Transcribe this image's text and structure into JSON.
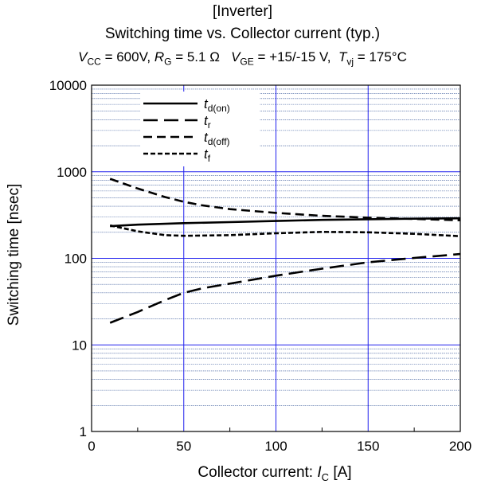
{
  "chart_data": {
    "type": "line",
    "title": "[Inverter]",
    "subtitle": "Switching time vs. Collector current  (typ.)",
    "conditions": {
      "vcc_sym": "V",
      "vcc_sub": "CC",
      "vcc_val": "= 600V,",
      "rg_sym": "R",
      "rg_sub": "G",
      "rg_val": "= 5.1 Ω",
      "vge_sym": "V",
      "vge_sub": "GE",
      "vge_val": "=  +15/-15 V,",
      "tvj_sym": "T",
      "tvj_sub": "vj",
      "tvj_val": "= 175°C"
    },
    "xlabel_text": "Collector current: ",
    "xlabel_sym": "I",
    "xlabel_sub": "C",
    "xlabel_unit": " [A]",
    "ylabel": "Switching time  [nsec]",
    "xlim": [
      0,
      200
    ],
    "ylim": [
      1,
      10000
    ],
    "yscale": "log",
    "x_ticks": [
      "0",
      "50",
      "100",
      "150",
      "200"
    ],
    "y_ticks": [
      "1",
      "10",
      "100",
      "1000",
      "10000"
    ],
    "grid": true,
    "legend_position": "top-left",
    "series": [
      {
        "name": "t",
        "name_sub": "d(on)",
        "style": "solid",
        "x": [
          10,
          25,
          50,
          75,
          100,
          125,
          150,
          175,
          200
        ],
        "y": [
          235,
          245,
          255,
          262,
          270,
          278,
          283,
          287,
          290
        ]
      },
      {
        "name": "t",
        "name_sub": "r",
        "style": "long-dash",
        "x": [
          10,
          25,
          40,
          50,
          60,
          75,
          100,
          125,
          150,
          175,
          200
        ],
        "y": [
          18,
          24,
          33,
          40,
          45,
          51,
          63,
          76,
          90,
          101,
          112
        ]
      },
      {
        "name": "t",
        "name_sub": "d(off)",
        "style": "dash",
        "x": [
          10,
          25,
          40,
          50,
          60,
          75,
          100,
          125,
          150,
          175,
          200
        ],
        "y": [
          830,
          640,
          510,
          450,
          410,
          370,
          335,
          310,
          295,
          285,
          275
        ]
      },
      {
        "name": "t",
        "name_sub": "f",
        "style": "short-dash",
        "x": [
          10,
          25,
          40,
          50,
          75,
          100,
          125,
          150,
          175,
          200
        ],
        "y": [
          240,
          205,
          185,
          182,
          185,
          195,
          202,
          200,
          192,
          180
        ]
      }
    ]
  }
}
